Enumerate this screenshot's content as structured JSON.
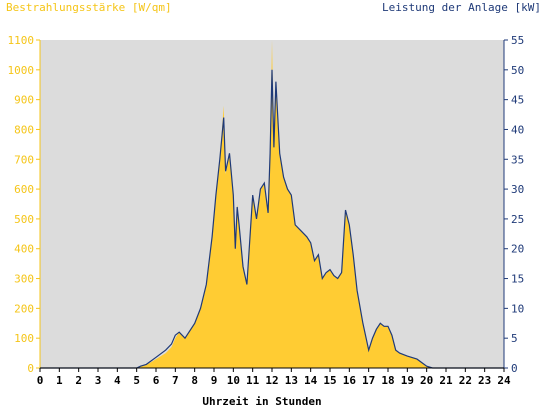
{
  "chart_data": {
    "type": "area",
    "left_axis_label": "Bestrahlungsstärke [W/qm]",
    "right_axis_label": "Leistung der Anlage [kW]",
    "xlabel": "Uhrzeit in Stunden",
    "xlim": [
      0,
      24
    ],
    "ylim_left": [
      0,
      1100
    ],
    "ylim_right": [
      0,
      55
    ],
    "x_ticks": [
      "0",
      "1",
      "2",
      "3",
      "4",
      "5",
      "6",
      "7",
      "8",
      "9",
      "10",
      "11",
      "12",
      "13",
      "14",
      "15",
      "16",
      "17",
      "18",
      "19",
      "20",
      "21",
      "22",
      "23",
      "24"
    ],
    "y_left_ticks": [
      "0",
      "100",
      "200",
      "300",
      "400",
      "500",
      "600",
      "700",
      "800",
      "900",
      "1000",
      "1100"
    ],
    "y_right_ticks": [
      "0",
      "5",
      "10",
      "15",
      "20",
      "25",
      "30",
      "35",
      "40",
      "45",
      "50",
      "55"
    ],
    "grid": false,
    "colors": {
      "irradiance": "#ffcc33",
      "power": "#1f3a78",
      "plot_bg": "#dcdcdc",
      "left_axis": "#f5c518",
      "right_axis": "#1f3a78"
    },
    "series": [
      {
        "name": "Bestrahlungsstärke",
        "axis": "left",
        "style": "area",
        "x": [
          0,
          5,
          5.2,
          5.5,
          6,
          6.5,
          6.8,
          7,
          7.2,
          7.5,
          8,
          8.3,
          8.6,
          8.9,
          9.1,
          9.3,
          9.5,
          9.6,
          9.8,
          10,
          10.1,
          10.2,
          10.3,
          10.5,
          10.7,
          11,
          11.2,
          11.4,
          11.6,
          11.8,
          11.9,
          12,
          12.1,
          12.2,
          12.4,
          12.6,
          12.8,
          13,
          13.2,
          13.5,
          13.8,
          14,
          14.2,
          14.4,
          14.6,
          14.8,
          15,
          15.2,
          15.4,
          15.6,
          15.8,
          16,
          16.2,
          16.4,
          16.7,
          17,
          17.2,
          17.4,
          17.6,
          17.8,
          18,
          18.2,
          18.4,
          18.6,
          19,
          19.5,
          20,
          20.3,
          24
        ],
        "y": [
          0,
          0,
          5,
          10,
          30,
          50,
          70,
          100,
          120,
          100,
          150,
          200,
          280,
          450,
          580,
          700,
          880,
          650,
          720,
          580,
          400,
          550,
          480,
          350,
          280,
          580,
          500,
          600,
          620,
          520,
          730,
          1100,
          740,
          960,
          720,
          640,
          600,
          580,
          480,
          460,
          440,
          420,
          360,
          380,
          300,
          320,
          330,
          310,
          300,
          320,
          520,
          480,
          380,
          260,
          150,
          60,
          100,
          130,
          150,
          140,
          140,
          110,
          60,
          50,
          40,
          30,
          5,
          0,
          0
        ]
      },
      {
        "name": "Leistung der Anlage",
        "axis": "right",
        "style": "line",
        "x": [
          0,
          5,
          5.2,
          5.5,
          6,
          6.5,
          6.8,
          7,
          7.2,
          7.5,
          8,
          8.3,
          8.6,
          8.9,
          9.1,
          9.3,
          9.5,
          9.6,
          9.8,
          10,
          10.1,
          10.2,
          10.3,
          10.5,
          10.7,
          11,
          11.2,
          11.4,
          11.6,
          11.8,
          11.9,
          12,
          12.1,
          12.2,
          12.4,
          12.6,
          12.8,
          13,
          13.2,
          13.5,
          13.8,
          14,
          14.2,
          14.4,
          14.6,
          14.8,
          15,
          15.2,
          15.4,
          15.6,
          15.8,
          16,
          16.2,
          16.4,
          16.7,
          17,
          17.2,
          17.4,
          17.6,
          17.8,
          18,
          18.2,
          18.4,
          18.6,
          19,
          19.5,
          20,
          20.3,
          24
        ],
        "y": [
          0,
          0,
          0.3,
          0.6,
          1.8,
          3,
          4,
          5.5,
          6,
          5,
          7.5,
          10,
          14,
          22,
          29,
          35,
          42,
          33,
          36,
          29,
          20,
          27,
          24,
          17,
          14,
          29,
          25,
          30,
          31,
          26,
          36,
          50,
          37,
          48,
          36,
          32,
          30,
          29,
          24,
          23,
          22,
          21,
          18,
          19,
          15,
          16,
          16.5,
          15.5,
          15,
          16,
          26.5,
          24,
          19,
          13,
          7.5,
          3,
          5,
          6.5,
          7.5,
          7,
          7,
          5.5,
          3,
          2.5,
          2,
          1.5,
          0.3,
          0,
          0
        ]
      }
    ]
  }
}
